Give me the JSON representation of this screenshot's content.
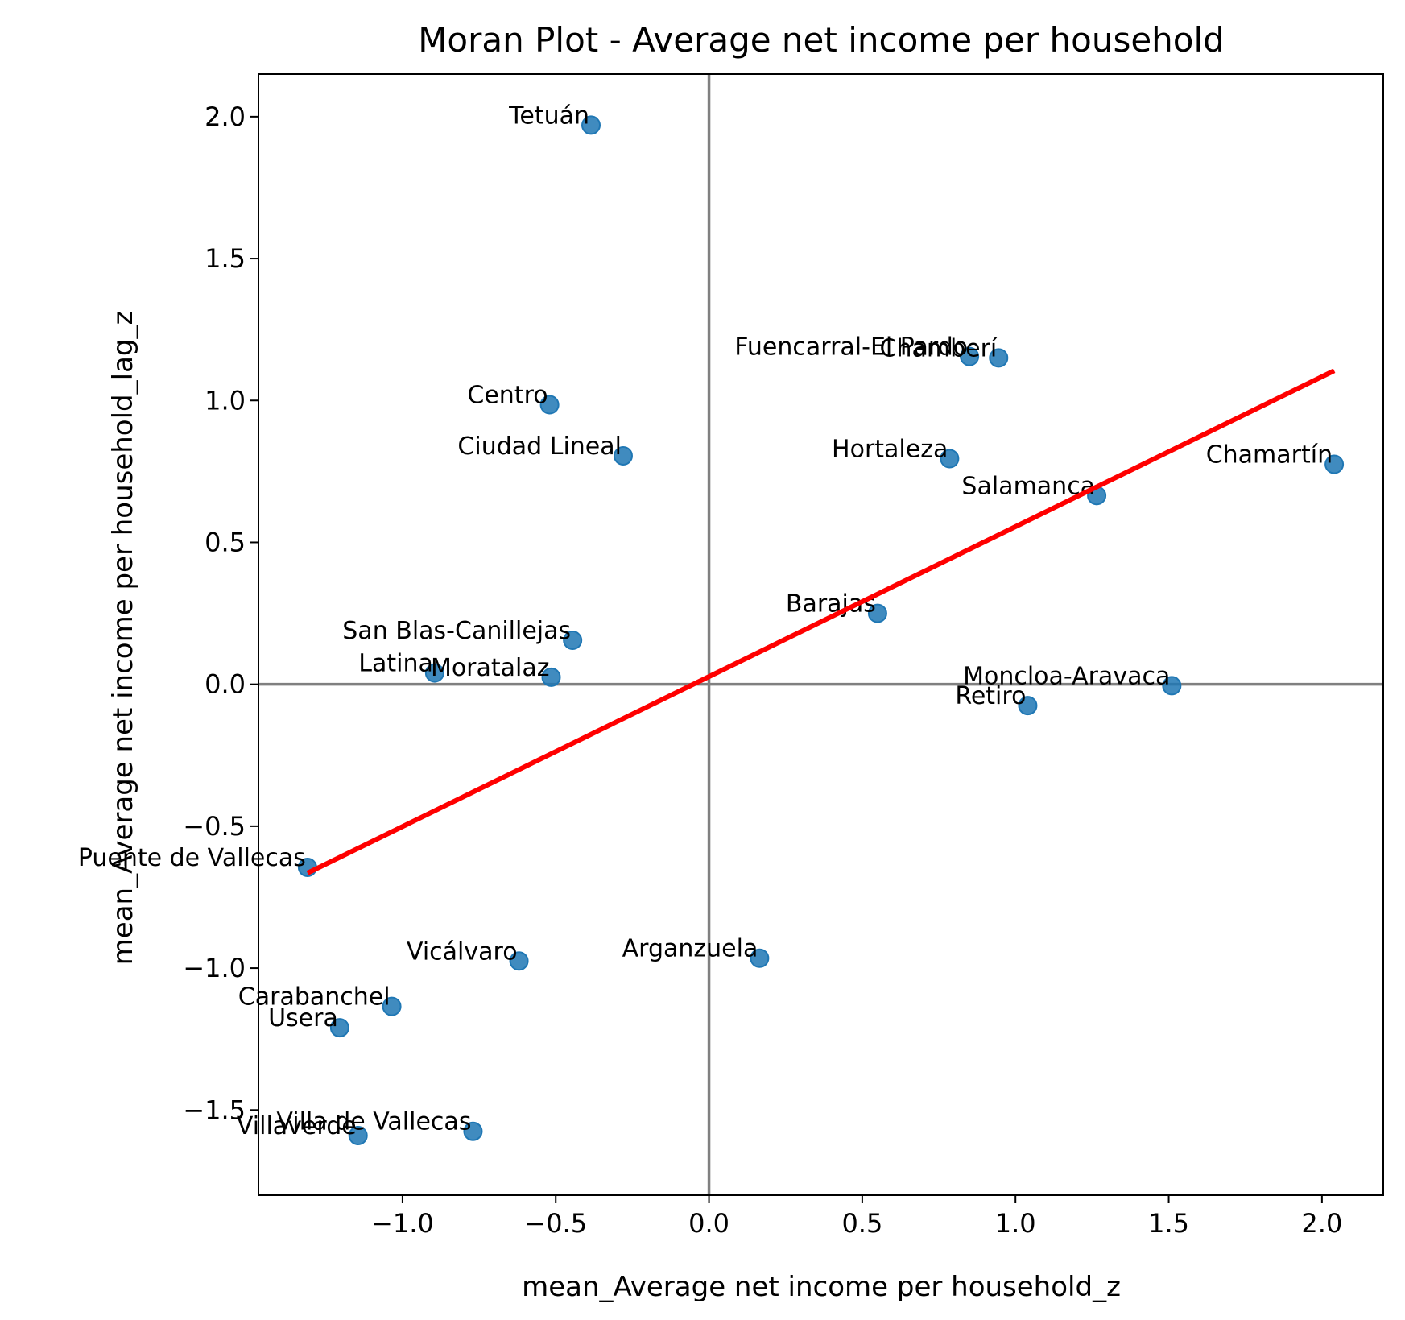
{
  "chart_data": {
    "type": "scatter",
    "title": "Moran Plot - Average net income per household",
    "xlabel": "mean_Average net income per household_z",
    "ylabel": "mean_Average net income per household_lag_z",
    "xlim": [
      -1.47,
      2.2
    ],
    "ylim": [
      -1.8,
      2.15
    ],
    "xticks": [
      -1.0,
      -0.5,
      0.0,
      0.5,
      1.0,
      1.5,
      2.0
    ],
    "yticks": [
      -1.5,
      -1.0,
      -0.5,
      0.0,
      0.5,
      1.0,
      1.5,
      2.0
    ],
    "xtick_labels": [
      "−1.0",
      "−0.5",
      "0.0",
      "0.5",
      "1.0",
      "1.5",
      "2.0"
    ],
    "ytick_labels": [
      "−1.5",
      "−1.0",
      "−0.5",
      "0.0",
      "0.5",
      "1.0",
      "1.5",
      "2.0"
    ],
    "point_color": "#1f77b4",
    "fit_line_color": "#ff0000",
    "reference_line_color": "#808080",
    "reference_lines": {
      "x": 0.0,
      "y": 0.0
    },
    "fit_line": {
      "x": [
        -1.31,
        2.04
      ],
      "y": [
        -0.665,
        1.105
      ]
    },
    "points": [
      {
        "name": "Tetuán",
        "x": -0.385,
        "y": 1.97
      },
      {
        "name": "Fuencarral-El Pardo",
        "x": 0.85,
        "y": 1.155
      },
      {
        "name": "Chamberí",
        "x": 0.945,
        "y": 1.15
      },
      {
        "name": "Centro",
        "x": -0.52,
        "y": 0.985
      },
      {
        "name": "Ciudad Lineal",
        "x": -0.28,
        "y": 0.805
      },
      {
        "name": "Hortaleza",
        "x": 0.785,
        "y": 0.795
      },
      {
        "name": "Chamartín",
        "x": 2.04,
        "y": 0.775
      },
      {
        "name": "Salamanca",
        "x": 1.265,
        "y": 0.665
      },
      {
        "name": "Barajas",
        "x": 0.55,
        "y": 0.25
      },
      {
        "name": "San Blas-Canillejas",
        "x": -0.445,
        "y": 0.155
      },
      {
        "name": "Latina",
        "x": -0.895,
        "y": 0.04
      },
      {
        "name": "Moratalaz",
        "x": -0.515,
        "y": 0.025
      },
      {
        "name": "Moncloa-Aravaca",
        "x": 1.51,
        "y": -0.005
      },
      {
        "name": "Retiro",
        "x": 1.04,
        "y": -0.075
      },
      {
        "name": "Puente de Vallecas",
        "x": -1.31,
        "y": -0.645
      },
      {
        "name": "Arganzuela",
        "x": 0.165,
        "y": -0.965
      },
      {
        "name": "Vicálvaro",
        "x": -0.62,
        "y": -0.975
      },
      {
        "name": "Carabanchel",
        "x": -1.035,
        "y": -1.135
      },
      {
        "name": "Usera",
        "x": -1.205,
        "y": -1.21
      },
      {
        "name": "Villa de Vallecas",
        "x": -0.77,
        "y": -1.575
      },
      {
        "name": "Villaverde",
        "x": -1.145,
        "y": -1.59
      }
    ]
  }
}
